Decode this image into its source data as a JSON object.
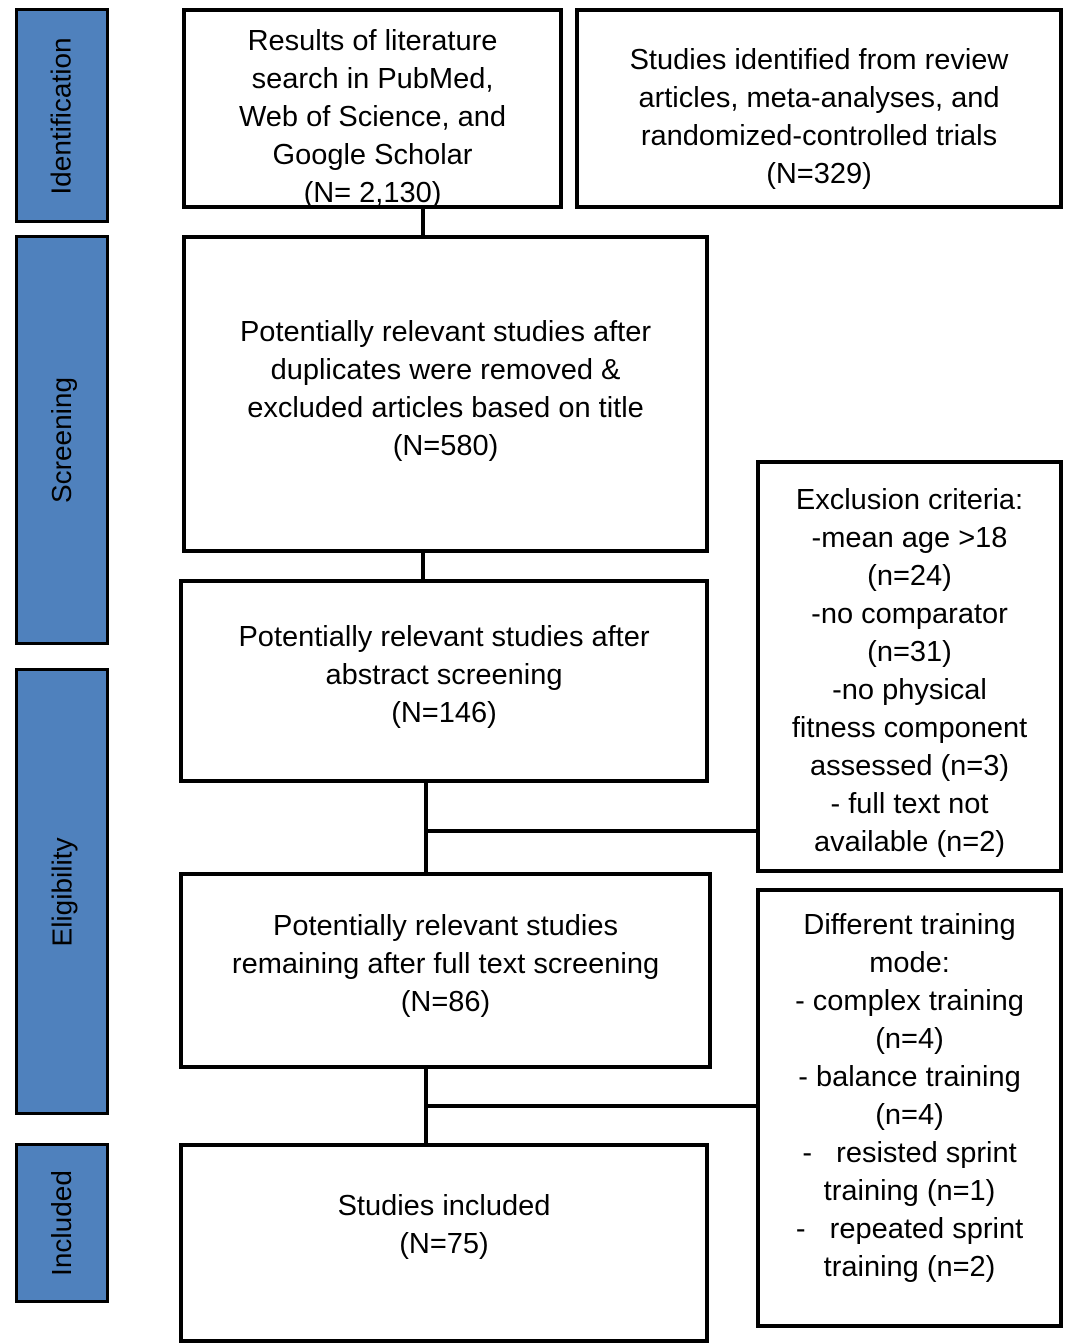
{
  "stages": {
    "identification": "Identification",
    "screening": "Screening",
    "eligibility": "Eligibility",
    "included": "Included"
  },
  "boxes": {
    "literature_search": {
      "lines": [
        "Results of literature",
        "search in PubMed,",
        "Web of Science, and",
        "Google Scholar",
        "(N= 2,130)"
      ]
    },
    "other_sources": {
      "lines": [
        "Studies identified from review",
        "articles, meta-analyses, and",
        "randomized-controlled trials",
        "(N=329)"
      ]
    },
    "after_duplicates": {
      "lines": [
        "Potentially relevant studies after",
        "duplicates were removed &",
        "excluded articles based on title",
        "(N=580)"
      ]
    },
    "after_abstract": {
      "lines": [
        "Potentially relevant studies after",
        "abstract screening",
        "(N=146)"
      ]
    },
    "after_fulltext": {
      "lines": [
        "Potentially relevant studies",
        "remaining after full text screening",
        "(N=86)"
      ]
    },
    "included": {
      "lines": [
        "Studies included",
        "(N=75)"
      ]
    },
    "exclusion_criteria": {
      "lines": [
        "Exclusion criteria:",
        "-mean age >18",
        "(n=24)",
        "-no comparator",
        "(n=31)",
        "-no physical",
        "fitness component",
        "assessed (n=3)",
        "- full text not",
        "available (n=2)"
      ]
    },
    "training_mode": {
      "lines": [
        "Different training",
        "mode:",
        "- complex training",
        "(n=4)",
        "- balance training",
        "(n=4)",
        "-   resisted sprint",
        "training (n=1)",
        "-   repeated sprint",
        "training (n=2)"
      ]
    }
  },
  "colors": {
    "stage_fill": "#4f81bd",
    "stroke": "#000000"
  }
}
